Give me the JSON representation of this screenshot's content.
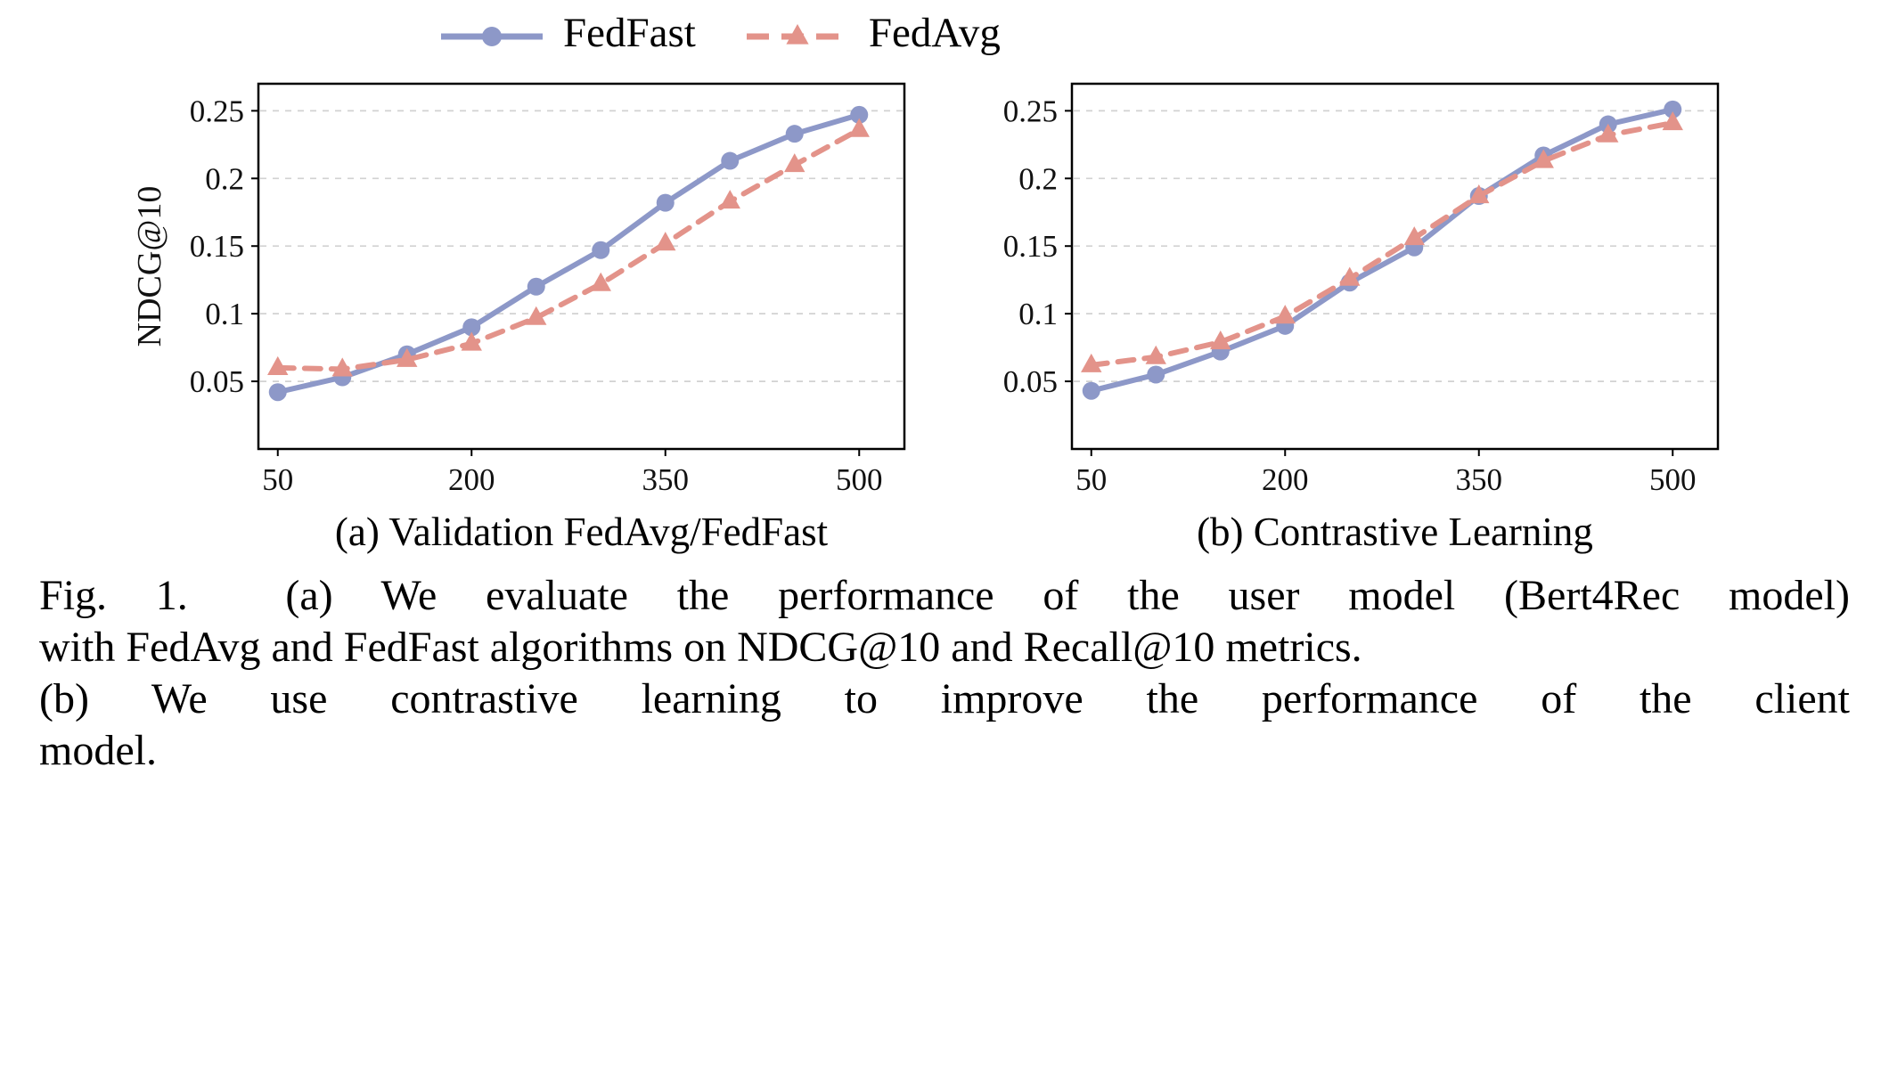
{
  "figure": {
    "legend": {
      "items": [
        {
          "label": "FedFast",
          "color": "#8d98c8",
          "marker": "circle",
          "dash": false
        },
        {
          "label": "FedAvg",
          "color": "#e3938a",
          "marker": "triangle",
          "dash": true
        }
      ]
    },
    "caption_lines": [
      "Fig. 1.  (a) We evaluate the performance of the user model (Bert4Rec model)",
      "with FedAvg and FedFast algorithms on NDCG@10 and Recall@10 metrics.",
      "(b) We use contrastive learning to improve the performance of the client",
      "model."
    ]
  },
  "colors": {
    "fedfast": "#8d98c8",
    "fedavg": "#e3938a",
    "grid": "#d2d2d2",
    "axis": "#000000",
    "background": "#ffffff"
  },
  "chart_data": [
    {
      "type": "line",
      "subcaption": "(a) Validation FedAvg/FedFast",
      "ylabel": "NDCG@10",
      "xlabel": "",
      "x": [
        50,
        100,
        150,
        200,
        250,
        300,
        350,
        400,
        450,
        500
      ],
      "xlim": [
        35,
        535
      ],
      "ylim": [
        0,
        0.27
      ],
      "xtick_values": [
        50,
        200,
        350,
        500
      ],
      "xtick_labels": [
        "50",
        "200",
        "350",
        "500"
      ],
      "ytick_values": [
        0.05,
        0.1,
        0.15,
        0.2,
        0.25
      ],
      "ytick_labels": [
        "0.05",
        "0.1",
        "0.15",
        "0.2",
        "0.25"
      ],
      "grid": true,
      "legend_position": "top-outside",
      "series": [
        {
          "name": "FedFast",
          "color": "#8d98c8",
          "marker": "circle",
          "dash": false,
          "values": [
            0.042,
            0.053,
            0.07,
            0.09,
            0.12,
            0.147,
            0.182,
            0.213,
            0.233,
            0.247
          ]
        },
        {
          "name": "FedAvg",
          "color": "#e3938a",
          "marker": "triangle",
          "dash": true,
          "values": [
            0.06,
            0.059,
            0.066,
            0.078,
            0.097,
            0.122,
            0.152,
            0.183,
            0.21,
            0.236
          ]
        }
      ]
    },
    {
      "type": "line",
      "subcaption": "(b) Contrastive Learning",
      "ylabel": "",
      "xlabel": "",
      "x": [
        50,
        100,
        150,
        200,
        250,
        300,
        350,
        400,
        450,
        500
      ],
      "xlim": [
        35,
        535
      ],
      "ylim": [
        0,
        0.27
      ],
      "xtick_values": [
        50,
        200,
        350,
        500
      ],
      "xtick_labels": [
        "50",
        "200",
        "350",
        "500"
      ],
      "ytick_values": [
        0.05,
        0.1,
        0.15,
        0.2,
        0.25
      ],
      "ytick_labels": [
        "0.05",
        "0.1",
        "0.15",
        "0.2",
        "0.25"
      ],
      "grid": true,
      "series": [
        {
          "name": "FedFast",
          "color": "#8d98c8",
          "marker": "circle",
          "dash": false,
          "values": [
            0.043,
            0.055,
            0.072,
            0.091,
            0.123,
            0.149,
            0.187,
            0.217,
            0.24,
            0.251
          ]
        },
        {
          "name": "FedAvg",
          "color": "#e3938a",
          "marker": "triangle",
          "dash": true,
          "values": [
            0.062,
            0.068,
            0.079,
            0.098,
            0.126,
            0.156,
            0.187,
            0.213,
            0.232,
            0.241
          ]
        }
      ]
    }
  ]
}
